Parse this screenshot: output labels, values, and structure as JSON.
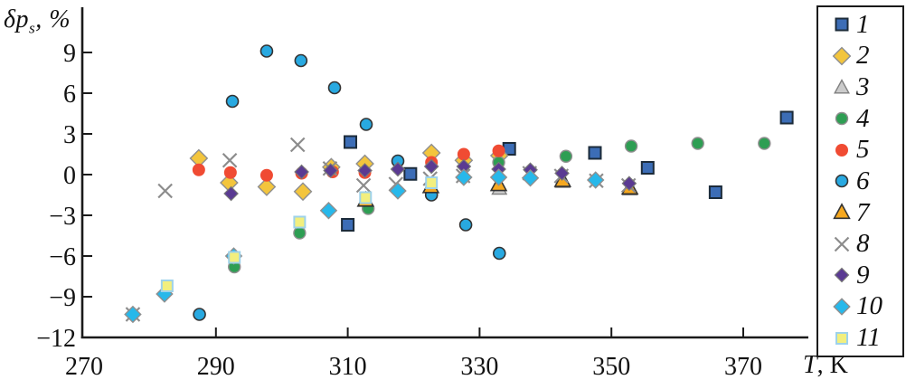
{
  "figure": {
    "y_axis": {
      "symbol": "δp",
      "subscript": "s",
      "unit": ", %"
    },
    "x_axis": {
      "symbol": "T",
      "unit": ", K"
    }
  },
  "chart_data": {
    "type": "scatter",
    "title": "",
    "ylabel": "δp_s, %",
    "xlabel": "T, K",
    "xlim": [
      270,
      380
    ],
    "ylim": [
      -12,
      12
    ],
    "xticks": [
      270,
      290,
      310,
      330,
      350,
      370
    ],
    "yticks": [
      9,
      6,
      3,
      0,
      -3,
      -6,
      -9,
      -12
    ],
    "ytick_labels": [
      "9",
      "6",
      "3",
      "0",
      "−3",
      "−6",
      "−9",
      "−12"
    ],
    "grid": false,
    "legend_position": "right-outside-box",
    "series": [
      {
        "label": "1",
        "marker": "square",
        "color": "#3c6db6",
        "stroke": "#1c2b3a",
        "stroke_width": 2,
        "size": 13,
        "points": [
          [
            310.4,
            2.4
          ],
          [
            310.0,
            -3.7
          ],
          [
            319.5,
            0.05
          ],
          [
            334.5,
            1.9
          ],
          [
            347.5,
            1.6
          ],
          [
            355.5,
            0.5
          ],
          [
            365.8,
            -1.3
          ],
          [
            376.6,
            4.2
          ]
        ]
      },
      {
        "label": "2",
        "marker": "diamond",
        "color": "#f3c53d",
        "stroke": "#8f8f8f",
        "stroke_width": 1.4,
        "size": 15,
        "points": [
          [
            287.4,
            1.2
          ],
          [
            292.0,
            -0.6
          ],
          [
            297.7,
            -0.9
          ],
          [
            303.2,
            -1.25
          ],
          [
            307.5,
            0.55
          ],
          [
            312.6,
            0.8
          ],
          [
            322.7,
            1.6
          ],
          [
            327.6,
            1.05
          ],
          [
            333.0,
            1.4
          ]
        ]
      },
      {
        "label": "3",
        "marker": "triangle",
        "color": "#cbcbcb",
        "stroke": "#7f7f7f",
        "stroke_width": 1.4,
        "size": 13,
        "points": [
          [
            333.0,
            -1.05
          ],
          [
            342.6,
            -0.55
          ],
          [
            352.8,
            -1.1
          ]
        ]
      },
      {
        "label": "4",
        "marker": "circle",
        "color": "#2e9e53",
        "stroke": "#8f8f8f",
        "stroke_width": 1.4,
        "size": 13,
        "points": [
          [
            292.8,
            -6.8
          ],
          [
            302.7,
            -4.3
          ],
          [
            313.1,
            -2.5
          ],
          [
            332.9,
            0.9
          ],
          [
            343.1,
            1.35
          ],
          [
            353.0,
            2.1
          ],
          [
            363.1,
            2.3
          ],
          [
            373.2,
            2.3
          ]
        ]
      },
      {
        "label": "5",
        "marker": "circle",
        "color": "#f04b33",
        "stroke": "none",
        "stroke_width": 0,
        "size": 14,
        "points": [
          [
            287.4,
            0.35
          ],
          [
            292.2,
            0.15
          ],
          [
            297.7,
            -0.05
          ],
          [
            303.0,
            0.1
          ],
          [
            307.7,
            0.2
          ],
          [
            312.6,
            0.15
          ],
          [
            322.7,
            0.9
          ],
          [
            327.6,
            1.5
          ],
          [
            332.9,
            1.75
          ]
        ]
      },
      {
        "label": "6",
        "marker": "circle",
        "color": "#28a9e1",
        "stroke": "#333333",
        "stroke_width": 1.6,
        "size": 13,
        "points": [
          [
            287.5,
            -10.3
          ],
          [
            292.5,
            5.4
          ],
          [
            297.7,
            9.1
          ],
          [
            302.9,
            8.4
          ],
          [
            308.0,
            6.4
          ],
          [
            312.8,
            3.7
          ],
          [
            317.6,
            1.0
          ],
          [
            322.7,
            -1.5
          ],
          [
            327.9,
            -3.7
          ],
          [
            333.0,
            -5.8
          ]
        ]
      },
      {
        "label": "7",
        "marker": "triangle",
        "color": "#f6a81f",
        "stroke": "#333333",
        "stroke_width": 1.6,
        "size": 14,
        "points": [
          [
            312.7,
            -1.9
          ],
          [
            322.6,
            -0.9
          ],
          [
            332.9,
            -0.75
          ],
          [
            342.6,
            -0.45
          ],
          [
            352.8,
            -1.0
          ]
        ]
      },
      {
        "label": "8",
        "marker": "x",
        "color": "#8c8c8c",
        "stroke": "#8c8c8c",
        "stroke_width": 2.2,
        "size": 15,
        "points": [
          [
            277.4,
            -10.3
          ],
          [
            282.3,
            -1.2
          ],
          [
            292.1,
            1.05
          ],
          [
            302.4,
            2.2
          ],
          [
            307.3,
            0.45
          ],
          [
            312.4,
            -0.8
          ],
          [
            317.3,
            -0.7
          ],
          [
            322.5,
            -0.3
          ],
          [
            327.5,
            -0.1
          ],
          [
            337.6,
            0.1
          ],
          [
            342.4,
            -0.1
          ],
          [
            347.7,
            -0.45
          ],
          [
            352.6,
            -0.8
          ]
        ]
      },
      {
        "label": "9",
        "marker": "diamond",
        "color": "#5a3a92",
        "stroke": "#777777",
        "stroke_width": 1.2,
        "size": 12,
        "points": [
          [
            292.3,
            -1.4
          ],
          [
            303.0,
            0.2
          ],
          [
            307.4,
            0.3
          ],
          [
            312.6,
            0.3
          ],
          [
            317.6,
            0.4
          ],
          [
            322.7,
            0.6
          ],
          [
            327.6,
            0.6
          ],
          [
            332.9,
            0.4
          ],
          [
            337.7,
            0.35
          ],
          [
            342.5,
            0.1
          ],
          [
            352.7,
            -0.65
          ]
        ]
      },
      {
        "label": "10",
        "marker": "diamond",
        "color": "#27b8ea",
        "stroke": "#8f8f8f",
        "stroke_width": 1.4,
        "size": 14,
        "points": [
          [
            277.4,
            -10.3
          ],
          [
            282.2,
            -8.8
          ],
          [
            292.7,
            -6.0
          ],
          [
            307.1,
            -2.65
          ],
          [
            317.6,
            -1.2
          ],
          [
            327.6,
            -0.2
          ],
          [
            332.9,
            -0.2
          ],
          [
            337.7,
            -0.25
          ],
          [
            347.6,
            -0.4
          ]
        ]
      },
      {
        "label": "11",
        "marker": "square",
        "color": "#f2ef7e",
        "stroke": "#9ed2ea",
        "stroke_width": 2,
        "size": 12,
        "points": [
          [
            282.6,
            -8.2
          ],
          [
            292.8,
            -6.1
          ],
          [
            302.7,
            -3.5
          ],
          [
            312.7,
            -1.7
          ],
          [
            322.7,
            -0.6
          ]
        ]
      }
    ]
  }
}
